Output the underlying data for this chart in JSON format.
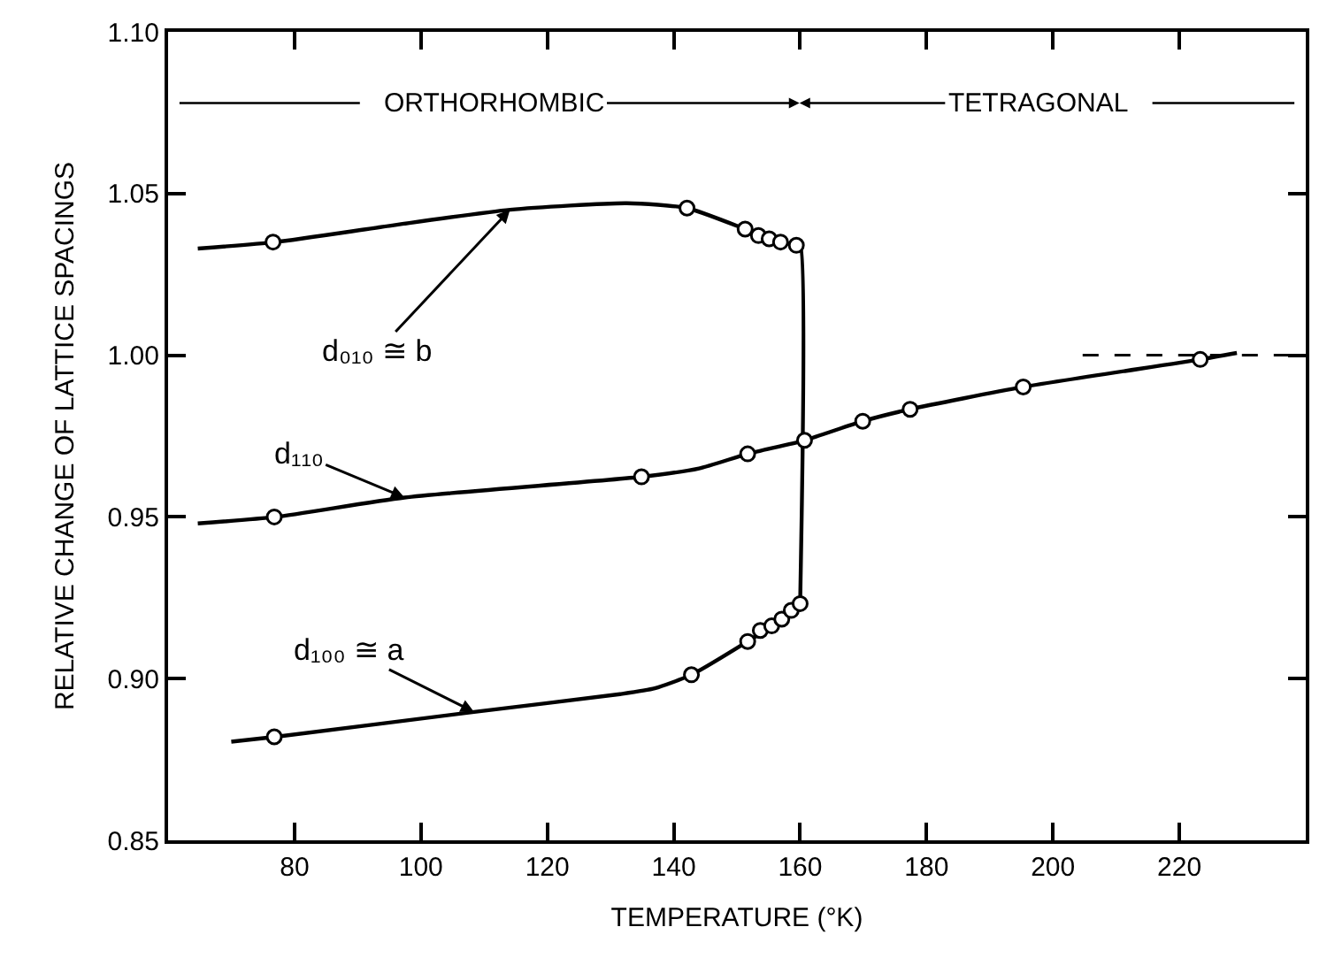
{
  "chart_data": {
    "type": "line",
    "xlabel": "TEMPERATURE (°K)",
    "ylabel": "RELATIVE CHANGE OF LATTICE SPACINGS",
    "xlim": [
      60,
      240
    ],
    "xticks": [
      80,
      100,
      120,
      140,
      160,
      180,
      200,
      220
    ],
    "ylim": [
      0.85,
      1.1
    ],
    "yticks": [
      {
        "value": 0.85,
        "label": "0.85"
      },
      {
        "value": 0.9,
        "label": "0.90"
      },
      {
        "value": 0.95,
        "label": "0.95"
      },
      {
        "value": 1.0,
        "label": "1.00"
      },
      {
        "value": 1.05,
        "label": "1.05"
      },
      {
        "value": 1.1,
        "label": "1.10"
      }
    ],
    "series": [
      {
        "color": "#000000",
        "marker": "none",
        "x": [
          64.7,
          77,
          95,
          114.1,
          132.6,
          142.1,
          151.3,
          155.1,
          159.4,
          160,
          160
        ],
        "values": [
          1.033,
          1.035,
          1.04,
          1.045,
          1.047,
          1.0455,
          1.039,
          1.036,
          1.034,
          1.034,
          0.923
        ]
      },
      {
        "color": "#000000",
        "marker": "none",
        "x": [
          64.7,
          77,
          97.4,
          134.9,
          144,
          151.7,
          160.7,
          169.9,
          177.4,
          195.3,
          223.3,
          229.1
        ],
        "values": [
          0.948,
          0.95,
          0.956,
          0.9624,
          0.965,
          0.9695,
          0.9737,
          0.9796,
          0.9833,
          0.9902,
          0.9987,
          1.0007
        ]
      },
      {
        "color": "#000000",
        "marker": "none",
        "x": [
          70,
          77,
          108.4,
          131.5,
          137,
          142.8,
          151.7,
          155.5,
          158.6,
          160
        ],
        "values": [
          0.8805,
          0.882,
          0.8897,
          0.8952,
          0.897,
          0.9012,
          0.9115,
          0.9163,
          0.9211,
          0.9232
        ]
      },
      {
        "color": "#000000",
        "marker": "none",
        "line_style": "dashed",
        "x": [
          204.7,
          240
        ],
        "values": [
          1.0,
          1.0
        ]
      },
      {
        "type": "scatter",
        "color": "#000000",
        "marker": "circle",
        "x": [
          76.6,
          142.1,
          151.3,
          153.4,
          155.1,
          156.9,
          159.4
        ],
        "values": [
          1.035,
          1.0455,
          1.039,
          1.037,
          1.036,
          1.035,
          1.034
        ]
      },
      {
        "type": "scatter",
        "color": "#000000",
        "marker": "circle",
        "x": [
          76.8,
          134.9,
          151.7,
          160.7,
          169.9,
          177.4,
          195.3,
          223.3
        ],
        "values": [
          0.95,
          0.9624,
          0.9695,
          0.9737,
          0.9796,
          0.9833,
          0.9902,
          0.9987
        ]
      },
      {
        "type": "scatter",
        "color": "#000000",
        "marker": "circle",
        "x": [
          76.8,
          142.8,
          151.7,
          153.7,
          155.5,
          157.1,
          158.6,
          160.0
        ],
        "values": [
          0.882,
          0.9012,
          0.9115,
          0.9149,
          0.9163,
          0.9184,
          0.9211,
          0.9232
        ]
      }
    ],
    "annotations": [
      {
        "text": "d₀₁₀ ≅ b",
        "x": 114.1,
        "y": 1.045
      },
      {
        "text": "d₁₁₀",
        "x": 97.4,
        "y": 0.956
      },
      {
        "text": "d₁₀₀ ≅ a",
        "x": 108.4,
        "y": 0.8897
      },
      "ORTHORHOMBIC",
      "TETRAGONAL"
    ]
  }
}
